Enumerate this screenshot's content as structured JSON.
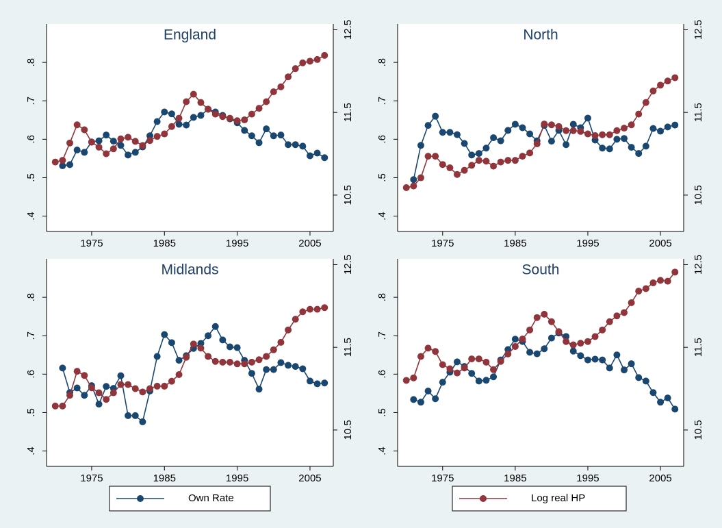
{
  "legend": [
    {
      "name": "Own Rate",
      "color": "#1a476f"
    },
    {
      "name": "Log real HP",
      "color": "#90353b"
    }
  ],
  "chart_data": [
    {
      "type": "line",
      "title": "England",
      "x": [
        1970,
        1971,
        1972,
        1973,
        1974,
        1975,
        1976,
        1977,
        1978,
        1979,
        1980,
        1981,
        1982,
        1983,
        1984,
        1985,
        1986,
        1987,
        1988,
        1989,
        1990,
        1991,
        1992,
        1993,
        1994,
        1995,
        1996,
        1997,
        1998,
        1999,
        2000,
        2001,
        2002,
        2003,
        2004,
        2005,
        2006,
        2007
      ],
      "series": [
        {
          "values": [
            null,
            0.531,
            0.534,
            0.572,
            0.566,
            0.593,
            0.596,
            0.611,
            0.595,
            0.584,
            0.559,
            0.566,
            0.58,
            0.609,
            0.646,
            0.671,
            0.666,
            0.639,
            0.637,
            0.657,
            0.662,
            0.678,
            0.671,
            0.662,
            0.653,
            0.643,
            0.623,
            0.609,
            0.591,
            0.627,
            0.609,
            0.611,
            0.586,
            0.586,
            0.582,
            0.557,
            0.564,
            0.552
          ]
        },
        {
          "axis": "y2",
          "values": [
            10.9,
            10.92,
            11.13,
            11.35,
            11.29,
            11.14,
            11.08,
            11.0,
            11.06,
            11.18,
            11.2,
            11.15,
            11.1,
            11.16,
            11.21,
            11.24,
            11.33,
            11.43,
            11.63,
            11.72,
            11.62,
            11.54,
            11.48,
            11.45,
            11.43,
            11.4,
            11.41,
            11.48,
            11.55,
            11.63,
            11.75,
            11.81,
            11.93,
            12.03,
            12.1,
            12.12,
            12.14,
            12.19
          ]
        }
      ],
      "xlim": [
        1968.8,
        2008.2
      ],
      "xticks": [
        1975,
        1985,
        1995,
        2005
      ],
      "ylim": [
        0.36,
        0.9
      ],
      "yticks": [
        {
          "value": 0.4,
          "label": ".4"
        },
        {
          "value": 0.5,
          "label": ".5"
        },
        {
          "value": 0.6,
          "label": ".6"
        },
        {
          "value": 0.7,
          "label": ".7"
        },
        {
          "value": 0.8,
          "label": ".8"
        }
      ],
      "y2lim": [
        10.06,
        12.57
      ],
      "y2ticks": [
        10.5,
        11.5,
        12.5
      ]
    },
    {
      "type": "line",
      "title": "North",
      "x": [
        1970,
        1971,
        1972,
        1973,
        1974,
        1975,
        1976,
        1977,
        1978,
        1979,
        1980,
        1981,
        1982,
        1983,
        1984,
        1985,
        1986,
        1987,
        1988,
        1989,
        1990,
        1991,
        1992,
        1993,
        1994,
        1995,
        1996,
        1997,
        1998,
        1999,
        2000,
        2001,
        2002,
        2003,
        2004,
        2005,
        2006,
        2007
      ],
      "series": [
        {
          "values": [
            null,
            0.495,
            0.584,
            0.636,
            0.66,
            0.618,
            0.618,
            0.612,
            0.589,
            0.559,
            0.563,
            0.577,
            0.604,
            0.596,
            0.623,
            0.639,
            0.63,
            0.614,
            0.596,
            0.636,
            0.595,
            0.623,
            0.586,
            0.639,
            0.63,
            0.655,
            0.598,
            0.577,
            0.575,
            0.6,
            0.602,
            0.579,
            0.563,
            0.582,
            0.628,
            0.621,
            0.632,
            0.637
          ]
        },
        {
          "axis": "y2",
          "values": [
            10.59,
            10.61,
            10.71,
            10.97,
            10.97,
            10.87,
            10.83,
            10.75,
            10.8,
            10.86,
            10.92,
            10.91,
            10.85,
            10.9,
            10.92,
            10.92,
            10.97,
            11.01,
            11.12,
            11.36,
            11.35,
            11.33,
            11.28,
            11.28,
            11.27,
            11.24,
            11.22,
            11.23,
            11.23,
            11.28,
            11.31,
            11.35,
            11.48,
            11.62,
            11.76,
            11.83,
            11.88,
            11.92
          ]
        }
      ],
      "xlim": [
        1968.8,
        2008.2
      ],
      "xticks": [
        1975,
        1985,
        1995,
        2005
      ],
      "ylim": [
        0.36,
        0.9
      ],
      "yticks": [
        {
          "value": 0.4,
          "label": ".4"
        },
        {
          "value": 0.5,
          "label": ".5"
        },
        {
          "value": 0.6,
          "label": ".6"
        },
        {
          "value": 0.7,
          "label": ".7"
        },
        {
          "value": 0.8,
          "label": ".8"
        }
      ],
      "y2lim": [
        10.06,
        12.57
      ],
      "y2ticks": [
        10.5,
        11.5,
        12.5
      ]
    },
    {
      "type": "line",
      "title": "Midlands",
      "x": [
        1970,
        1971,
        1972,
        1973,
        1974,
        1975,
        1976,
        1977,
        1978,
        1979,
        1980,
        1981,
        1982,
        1983,
        1984,
        1985,
        1986,
        1987,
        1988,
        1989,
        1990,
        1991,
        1992,
        1993,
        1994,
        1995,
        1996,
        1997,
        1998,
        1999,
        2000,
        2001,
        2002,
        2003,
        2004,
        2005,
        2006,
        2007
      ],
      "series": [
        {
          "values": [
            null,
            0.616,
            0.552,
            0.564,
            0.545,
            0.57,
            0.522,
            0.568,
            0.563,
            0.596,
            0.492,
            0.492,
            0.476,
            0.556,
            0.646,
            0.703,
            0.682,
            0.636,
            0.648,
            0.667,
            0.68,
            0.7,
            0.724,
            0.689,
            0.671,
            0.669,
            0.636,
            0.602,
            0.561,
            0.612,
            0.612,
            0.63,
            0.623,
            0.62,
            0.614,
            0.582,
            0.575,
            0.577
          ]
        },
        {
          "axis": "y2",
          "values": [
            10.79,
            10.79,
            10.92,
            11.21,
            11.16,
            11.01,
            10.95,
            10.87,
            10.95,
            11.05,
            11.05,
            11.0,
            10.96,
            11.0,
            11.03,
            11.03,
            11.09,
            11.17,
            11.38,
            11.54,
            11.49,
            11.39,
            11.33,
            11.32,
            11.32,
            11.3,
            11.3,
            11.32,
            11.35,
            11.39,
            11.47,
            11.56,
            11.71,
            11.84,
            11.93,
            11.96,
            11.96,
            11.98
          ]
        }
      ],
      "xlim": [
        1968.8,
        2008.2
      ],
      "xticks": [
        1975,
        1985,
        1995,
        2005
      ],
      "ylim": [
        0.36,
        0.9
      ],
      "yticks": [
        {
          "value": 0.4,
          "label": ".4"
        },
        {
          "value": 0.5,
          "label": ".5"
        },
        {
          "value": 0.6,
          "label": ".6"
        },
        {
          "value": 0.7,
          "label": ".7"
        },
        {
          "value": 0.8,
          "label": ".8"
        }
      ],
      "y2lim": [
        10.06,
        12.57
      ],
      "y2ticks": [
        10.5,
        11.5,
        12.5
      ]
    },
    {
      "type": "line",
      "title": "South",
      "x": [
        1970,
        1971,
        1972,
        1973,
        1974,
        1975,
        1976,
        1977,
        1978,
        1979,
        1980,
        1981,
        1982,
        1983,
        1984,
        1985,
        1986,
        1987,
        1988,
        1989,
        1990,
        1991,
        1992,
        1993,
        1994,
        1995,
        1996,
        1997,
        1998,
        1999,
        2000,
        2001,
        2002,
        2003,
        2004,
        2005,
        2006,
        2007
      ],
      "series": [
        {
          "values": [
            null,
            0.534,
            0.527,
            0.556,
            0.536,
            0.579,
            0.605,
            0.632,
            0.62,
            0.602,
            0.582,
            0.584,
            0.593,
            0.637,
            0.664,
            0.691,
            0.685,
            0.657,
            0.653,
            0.666,
            0.694,
            0.707,
            0.698,
            0.66,
            0.648,
            0.637,
            0.639,
            0.637,
            0.616,
            0.65,
            0.611,
            0.627,
            0.591,
            0.582,
            0.552,
            0.527,
            0.538,
            0.509
          ]
        },
        {
          "axis": "y2",
          "values": [
            11.1,
            11.13,
            11.39,
            11.49,
            11.45,
            11.29,
            11.24,
            11.19,
            11.25,
            11.36,
            11.36,
            11.32,
            11.23,
            11.33,
            11.42,
            11.51,
            11.6,
            11.71,
            11.86,
            11.9,
            11.81,
            11.69,
            11.57,
            11.53,
            11.55,
            11.57,
            11.63,
            11.71,
            11.81,
            11.88,
            11.92,
            12.04,
            12.18,
            12.21,
            12.28,
            12.31,
            12.3,
            12.41
          ]
        }
      ],
      "xlim": [
        1968.8,
        2008.2
      ],
      "xticks": [
        1975,
        1985,
        1995,
        2005
      ],
      "ylim": [
        0.36,
        0.9
      ],
      "yticks": [
        {
          "value": 0.4,
          "label": ".4"
        },
        {
          "value": 0.5,
          "label": ".5"
        },
        {
          "value": 0.6,
          "label": ".6"
        },
        {
          "value": 0.7,
          "label": ".7"
        },
        {
          "value": 0.8,
          "label": ".8"
        }
      ],
      "y2lim": [
        10.06,
        12.57
      ],
      "y2ticks": [
        10.5,
        11.5,
        12.5
      ]
    }
  ]
}
